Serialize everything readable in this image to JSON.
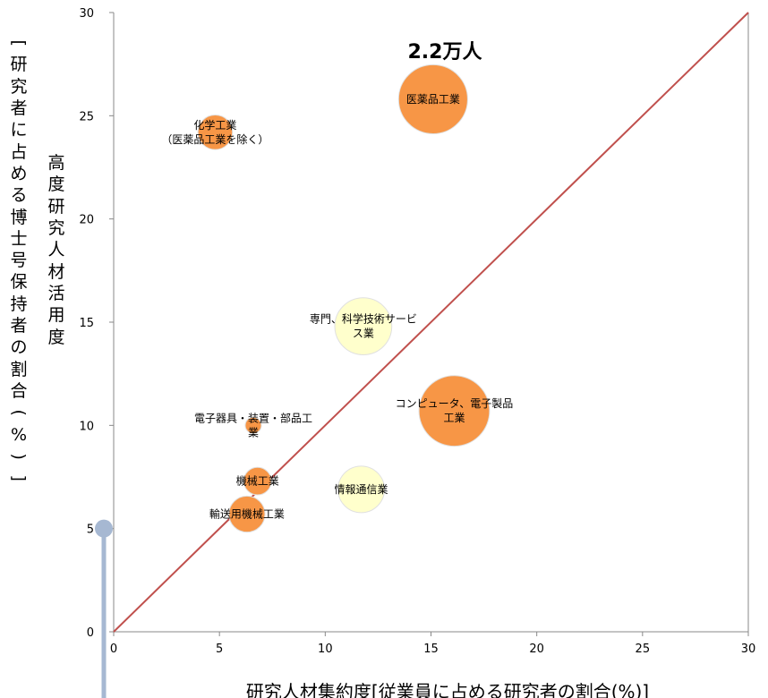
{
  "chart_data": {
    "type": "bubble",
    "xlabel": "研究人材集約度[従業員に占める研究者の割合(%)]",
    "ylabel_outer": "[研究者に占める博士号保持者の割合(%)]",
    "ylabel_inner": "高度研究人材活用度",
    "xlim": [
      0,
      30
    ],
    "ylim": [
      0,
      30
    ],
    "x_ticks": [
      0,
      5,
      10,
      15,
      20,
      25,
      30
    ],
    "y_ticks": [
      0,
      5,
      10,
      15,
      20,
      25,
      30
    ],
    "grid": false,
    "reference_line": {
      "from": [
        0,
        0
      ],
      "to": [
        30,
        30
      ],
      "color": "#c0504d"
    },
    "size_annotation": "2.2万人",
    "size_legend_value": 5,
    "series": [
      {
        "label_lines": [
          "化学工業",
          "（医薬品工業を除く）"
        ],
        "x": 4.8,
        "y": 24.2,
        "size": 0.55,
        "color": "#f79646"
      },
      {
        "label_lines": [
          "医薬品工業"
        ],
        "x": 15.1,
        "y": 25.8,
        "size": 2.2,
        "color": "#f79646"
      },
      {
        "label_lines": [
          "専門、科学技術サービ",
          "ス業"
        ],
        "x": 11.8,
        "y": 14.8,
        "size": 1.5,
        "color": "#ffffcc"
      },
      {
        "label_lines": [
          "コンピュータ、電子製品",
          "工業"
        ],
        "x": 16.1,
        "y": 10.7,
        "size": 2.3,
        "color": "#f79646"
      },
      {
        "label_lines": [
          "電子器具・装置・部品工",
          "業"
        ],
        "x": 6.6,
        "y": 10.0,
        "size": 0.12,
        "color": "#f79646"
      },
      {
        "label_lines": [
          "機械工業"
        ],
        "x": 6.8,
        "y": 7.3,
        "size": 0.35,
        "color": "#f79646"
      },
      {
        "label_lines": [
          "情報通信業"
        ],
        "x": 11.7,
        "y": 6.9,
        "size": 1.0,
        "color": "#ffffcc"
      },
      {
        "label_lines": [
          "輸送用機械工業"
        ],
        "x": 6.3,
        "y": 5.7,
        "size": 0.6,
        "color": "#f79646"
      }
    ]
  }
}
